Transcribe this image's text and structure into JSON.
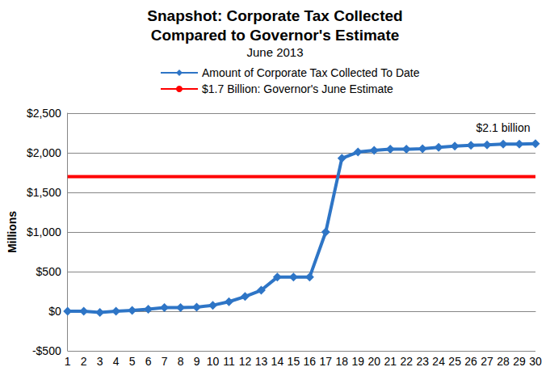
{
  "chart_data": {
    "type": "line",
    "title": "Snapshot: Corporate Tax Collected\nCompared to Governor's Estimate",
    "subtitle": "June 2013",
    "y_label": "Millions",
    "categories": [
      "1",
      "2",
      "3",
      "4",
      "5",
      "6",
      "7",
      "8",
      "9",
      "10",
      "11",
      "12",
      "13",
      "14",
      "15",
      "16",
      "17",
      "18",
      "19",
      "20",
      "21",
      "22",
      "23",
      "24",
      "25",
      "26",
      "27",
      "28",
      "29",
      "30"
    ],
    "series": [
      {
        "name": "Amount of Corporate Tax Collected To Date",
        "color": "#2e75c6",
        "marker": "diamond",
        "line_style": "solid",
        "values": [
          0,
          0,
          -15,
          0,
          10,
          25,
          45,
          45,
          50,
          75,
          120,
          185,
          265,
          430,
          430,
          430,
          1000,
          1930,
          2010,
          2030,
          2045,
          2045,
          2050,
          2070,
          2085,
          2095,
          2100,
          2110,
          2110,
          2115
        ]
      },
      {
        "name": "$1.7 Billion: Governor's June Estimate",
        "color": "#ff0000",
        "marker": "none",
        "line_style": "solid",
        "values": [
          1700,
          1700,
          1700,
          1700,
          1700,
          1700,
          1700,
          1700,
          1700,
          1700,
          1700,
          1700,
          1700,
          1700,
          1700,
          1700,
          1700,
          1700,
          1700,
          1700,
          1700,
          1700,
          1700,
          1700,
          1700,
          1700,
          1700,
          1700,
          1700,
          1700
        ]
      }
    ],
    "annotations": [
      {
        "text": "$2.1 billion",
        "x": "28",
        "series": "Amount of Corporate Tax Collected To Date"
      }
    ],
    "ylim": [
      -500,
      2500
    ],
    "yticks": [
      {
        "value": -500,
        "label": "-$500"
      },
      {
        "value": 0,
        "label": "$0"
      },
      {
        "value": 500,
        "label": "$500"
      },
      {
        "value": 1000,
        "label": "$1,000"
      },
      {
        "value": 1500,
        "label": "$1,500"
      },
      {
        "value": 2000,
        "label": "$2,000"
      },
      {
        "value": 2500,
        "label": "$2,500"
      }
    ],
    "grid": true,
    "legend": "top"
  }
}
